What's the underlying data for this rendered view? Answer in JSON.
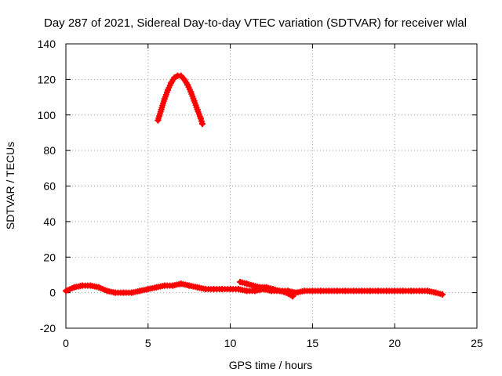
{
  "chart_data": {
    "type": "scatter",
    "title": "Day 287 of 2021, Sidereal Day-to-day VTEC variation (SDTVAR) for receiver wlal",
    "xlabel": "GPS time / hours",
    "ylabel": "SDTVAR / TECUs",
    "xlim": [
      0,
      25
    ],
    "ylim": [
      -20,
      140
    ],
    "xticks": [
      "0",
      "5",
      "10",
      "15",
      "20",
      "25"
    ],
    "yticks": [
      "-20",
      "0",
      "20",
      "40",
      "60",
      "80",
      "100",
      "120",
      "140"
    ],
    "grid": true,
    "marker": "+",
    "color": "#ff0000",
    "series": [
      {
        "name": "main",
        "x": [
          0.0,
          0.5,
          1.0,
          1.5,
          2.0,
          2.5,
          3.0,
          3.5,
          4.0,
          4.5,
          5.0,
          5.5,
          6.0,
          6.5,
          7.0,
          7.5,
          8.0,
          8.5,
          9.0,
          9.5,
          10.0,
          10.5,
          11.0,
          11.5,
          12.0,
          12.5,
          13.0,
          13.5,
          14.0,
          14.5,
          15.0,
          15.5,
          16.0,
          16.5,
          17.0,
          17.5,
          18.0,
          18.5,
          19.0,
          19.5,
          20.0,
          20.5,
          21.0,
          21.5,
          22.0,
          22.5,
          22.9
        ],
        "y": [
          1,
          3,
          4,
          4,
          3,
          1,
          0,
          0,
          0,
          1,
          2,
          3,
          4,
          4,
          5,
          4,
          3,
          2,
          2,
          2,
          2,
          2,
          1,
          1,
          2,
          1,
          1,
          1,
          0,
          1,
          1,
          1,
          1,
          1,
          1,
          1,
          1,
          1,
          1,
          1,
          1,
          1,
          1,
          1,
          1,
          0,
          -1
        ]
      },
      {
        "name": "secondary",
        "x": [
          10.6,
          11.0,
          11.4,
          11.8,
          12.2,
          12.6,
          13.0,
          13.4,
          13.8
        ],
        "y": [
          6,
          5,
          4,
          3,
          3,
          2,
          1,
          0,
          -2
        ]
      },
      {
        "name": "arc",
        "x": [
          5.6,
          5.8,
          6.0,
          6.2,
          6.4,
          6.6,
          6.8,
          7.0,
          7.2,
          7.4,
          7.6,
          7.8,
          8.0,
          8.2,
          8.3
        ],
        "y": [
          97,
          103,
          109,
          114,
          118,
          121,
          122,
          122,
          120,
          117,
          113,
          108,
          103,
          98,
          95
        ]
      }
    ]
  }
}
